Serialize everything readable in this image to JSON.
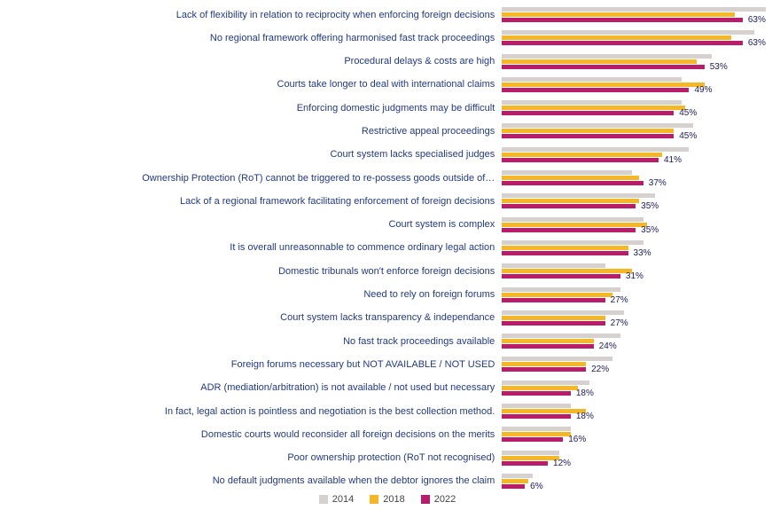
{
  "chart": {
    "type": "bar-horizontal-grouped",
    "series": [
      {
        "name": "2014",
        "color": "#d6d1cf"
      },
      {
        "name": "2018",
        "color": "#f6b726"
      },
      {
        "name": "2022",
        "color": "#b81c6b"
      }
    ],
    "show_value_on_series_index": 2,
    "max_value": 70,
    "label_color": "#223a80",
    "value_color": "#1a1a5c",
    "background_color": "#ffffff",
    "label_fontsize": 11,
    "value_fontsize": 10,
    "categories": [
      {
        "label": "Lack of flexibility in relation to reciprocity when enforcing foreign decisions",
        "values": [
          69,
          61,
          63
        ]
      },
      {
        "label": "No regional framework offering harmonised fast track proceedings",
        "values": [
          66,
          60,
          63
        ]
      },
      {
        "label": "Procedural delays & costs are high",
        "values": [
          55,
          51,
          53
        ]
      },
      {
        "label": "Courts take longer to deal with international claims",
        "values": [
          47,
          53,
          49
        ]
      },
      {
        "label": "Enforcing domestic judgments may be difficult",
        "values": [
          47,
          48,
          45
        ]
      },
      {
        "label": "Restrictive appeal proceedings",
        "values": [
          50,
          45,
          45
        ]
      },
      {
        "label": "Court system lacks specialised judges",
        "values": [
          49,
          42,
          41
        ]
      },
      {
        "label": "Ownership Protection (RoT) cannot be triggered to re-possess goods outside of…",
        "values": [
          34,
          36,
          37
        ]
      },
      {
        "label": "Lack of a regional framework facilitating enforcement of foreign decisions",
        "values": [
          40,
          36,
          35
        ]
      },
      {
        "label": "Court system is complex",
        "values": [
          37,
          38,
          35
        ]
      },
      {
        "label": "It is overall unreasonnable to commence ordinary legal action",
        "values": [
          37,
          33,
          33
        ]
      },
      {
        "label": "Domestic tribunals won't enforce foreign decisions",
        "values": [
          27,
          34,
          31
        ]
      },
      {
        "label": "Need to rely on foreign forums",
        "values": [
          31,
          29,
          27
        ]
      },
      {
        "label": "Court system lacks transparency & independance",
        "values": [
          32,
          27,
          27
        ]
      },
      {
        "label": "No fast track proceedings available",
        "values": [
          31,
          24,
          24
        ]
      },
      {
        "label": "Foreign forums necessary but NOT AVAILABLE / NOT USED",
        "values": [
          29,
          22,
          22
        ]
      },
      {
        "label": "ADR (mediation/arbitration) is not available / not used but necessary",
        "values": [
          23,
          20,
          18
        ]
      },
      {
        "label": "In fact, legal action is pointless and negotiation is the best collection method.",
        "values": [
          18,
          22,
          18
        ]
      },
      {
        "label": "Domestic courts would reconsider all foreign decisions on the merits",
        "values": [
          18,
          18,
          16
        ]
      },
      {
        "label": "Poor ownership protection (RoT not recognised)",
        "values": [
          15,
          15,
          12
        ]
      },
      {
        "label": "No default judgments available when the debtor ignores the claim",
        "values": [
          8,
          7,
          6
        ]
      }
    ]
  }
}
